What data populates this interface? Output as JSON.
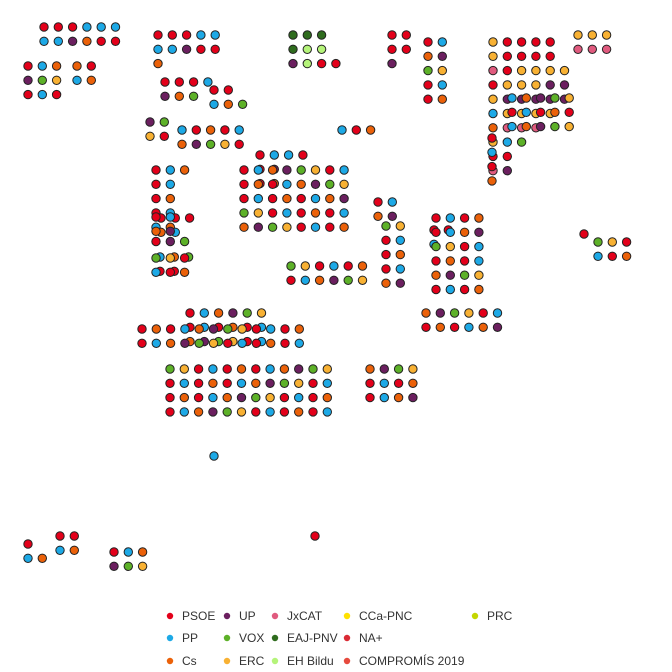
{
  "chart_data": {
    "type": "scatter",
    "title": "",
    "xlabel": "",
    "ylabel": "",
    "grid": false,
    "legend_position": "bottom",
    "parties": [
      {
        "key": "PSOE",
        "name": "PSOE",
        "color": "#E3001A"
      },
      {
        "key": "PP",
        "name": "PP",
        "color": "#1DA9E6"
      },
      {
        "key": "Cs",
        "name": "Cs",
        "color": "#EB6109"
      },
      {
        "key": "UP",
        "name": "UP",
        "color": "#6B1F5F"
      },
      {
        "key": "VOX",
        "name": "VOX",
        "color": "#5DB128"
      },
      {
        "key": "ERC",
        "name": "ERC",
        "color": "#F8B133"
      },
      {
        "key": "JxCAT",
        "name": "JxCAT",
        "color": "#E05A7E"
      },
      {
        "key": "EAJPNV",
        "name": "EAJ-PNV",
        "color": "#2F6C1E"
      },
      {
        "key": "EHBildu",
        "name": "EH Bildu",
        "color": "#B5F47A"
      },
      {
        "key": "CCaPNC",
        "name": "CCa-PNC",
        "color": "#FFE100"
      },
      {
        "key": "NA",
        "name": "NA+",
        "color": "#DA2B35"
      },
      {
        "key": "COMPROMIS",
        "name": "COMPROMÍS 2019",
        "color": "#E64A3D"
      },
      {
        "key": "PRC",
        "name": "PRC",
        "color": "#C4D600"
      }
    ],
    "provinces": [
      {
        "rows": [
          [
            "PSOE",
            "PSOE",
            "PSOE",
            "PP",
            "PP",
            "PP"
          ],
          [
            "PP",
            "PP",
            "UP",
            "Cs",
            "PSOE",
            "PSOE"
          ]
        ]
      },
      {
        "rows": [
          [
            "PSOE",
            "PSOE",
            "PSOE",
            "PP",
            "PP"
          ],
          [
            "PP",
            "PP",
            "UP",
            "PSOE",
            "PSOE"
          ],
          [
            "Cs"
          ]
        ]
      },
      {
        "rows": [
          [
            "PSOE",
            "PSOE",
            "PSOE",
            "PP"
          ],
          [
            "UP",
            "Cs",
            "VOX"
          ]
        ]
      },
      {
        "rows": [
          [
            "PSOE",
            "PSOE"
          ],
          [
            "PP",
            "Cs",
            "VOX"
          ]
        ]
      },
      {
        "rows": [
          [
            "EAJPNV",
            "EAJPNV",
            "EAJPNV"
          ],
          [
            "EAJPNV",
            "EHBildu",
            "EHBildu"
          ],
          [
            "UP",
            "EHBildu",
            "PSOE",
            "PSOE"
          ]
        ]
      },
      {
        "rows": [
          [
            "PSOE",
            "PSOE"
          ],
          [
            "PSOE",
            "PSOE"
          ],
          [
            "UP"
          ]
        ]
      },
      {
        "rows": [
          [
            "PSOE",
            "PP",
            "Cs"
          ],
          [
            "PSOE",
            "PP"
          ],
          [
            "PSOE",
            "Cs"
          ],
          [
            "PSOE",
            "PP"
          ],
          [
            "PP",
            "Cs"
          ],
          [
            "PSOE",
            "UP",
            "VOX"
          ]
        ]
      },
      {
        "rows": [
          [
            "ERC",
            "PSOE",
            "PSOE",
            "PSOE",
            "PSOE"
          ],
          [
            "ERC",
            "PSOE",
            "PSOE",
            "PSOE",
            "PSOE"
          ],
          [
            "JxCAT",
            "PSOE",
            "ERC",
            "ERC",
            "ERC",
            "ERC"
          ],
          [
            "PSOE",
            "ERC",
            "ERC",
            "ERC",
            "UP",
            "UP"
          ],
          [
            "ERC",
            "UP",
            "UP",
            "UP",
            "UP",
            "UP"
          ],
          [
            "PP",
            "ERC",
            "ERC",
            "ERC",
            "ERC"
          ],
          [
            "Cs",
            "JxCAT",
            "JxCAT",
            "JxCAT"
          ],
          [
            "ERC",
            "PP",
            "VOX"
          ],
          [
            "PSOE",
            "PSOE"
          ],
          [
            "JxCAT",
            "UP"
          ]
        ]
      },
      {
        "rows": [
          [
            "ERC",
            "ERC",
            "ERC"
          ],
          [
            "JxCAT",
            "JxCAT",
            "JxCAT"
          ]
        ]
      },
      {
        "rows": [
          [
            "PSOE",
            "PP",
            "PP",
            "PSOE"
          ],
          [
            "PSOE",
            "UP"
          ],
          [
            "PSOE",
            "Cs"
          ]
        ]
      }
    ],
    "pairs": [
      [
        [
          "PSOE"
        ],
        [
          "PP",
          "Cs"
        ]
      ],
      [
        [
          "PSOE",
          "PSOE"
        ],
        [
          "PP",
          "Cs"
        ]
      ],
      [
        [
          "PP",
          "Cs",
          "VOX"
        ],
        [
          "PSOE",
          "PSOE"
        ]
      ],
      [
        [
          "PSOE",
          "PSOE",
          "PSOE"
        ],
        [
          "Cs",
          "PP"
        ]
      ],
      [
        [
          "PSOE",
          "PSOE"
        ],
        [
          "PP"
        ]
      ]
    ]
  },
  "legend": {
    "items": [
      {
        "label": "PSOE",
        "color": "#E3001A"
      },
      {
        "label": "UP",
        "color": "#6B1F5F"
      },
      {
        "label": "JxCAT",
        "color": "#E05A7E"
      },
      {
        "label": "CCa-PNC",
        "color": "#FFE100"
      },
      {
        "label": "PRC",
        "color": "#C4D600"
      },
      {
        "label": "PP",
        "color": "#1DA9E6"
      },
      {
        "label": "VOX",
        "color": "#5DB128"
      },
      {
        "label": "EAJ-PNV",
        "color": "#2F6C1E"
      },
      {
        "label": "NA+",
        "color": "#DA2B35"
      },
      {
        "label": "Cs",
        "color": "#EB6109"
      },
      {
        "label": "ERC",
        "color": "#F8B133"
      },
      {
        "label": "EH Bildu",
        "color": "#B5F47A"
      },
      {
        "label": "COMPROMÍS 2019",
        "color": "#E64A3D"
      }
    ]
  }
}
